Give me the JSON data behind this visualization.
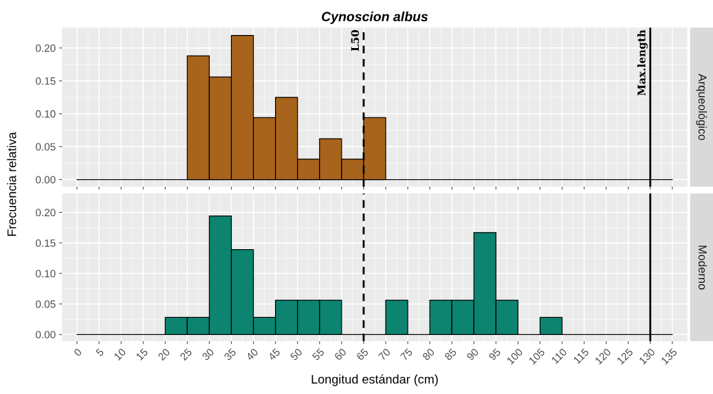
{
  "chart_data": [
    {
      "type": "histogram",
      "title": "Cynoscion albus",
      "ylabel": "Frecuencia relativa",
      "y2label": "Arqueológico",
      "color": "#a8641c",
      "bins": [
        0,
        5,
        10,
        15,
        20,
        25,
        30,
        35,
        40,
        45,
        50,
        55,
        60,
        65,
        70,
        75,
        80,
        85,
        90,
        95,
        100,
        105,
        110,
        115,
        120,
        125,
        130,
        135
      ],
      "values": [
        0,
        0,
        0,
        0,
        0,
        0.188,
        0.156,
        0.219,
        0.094,
        0.125,
        0.031,
        0.062,
        0.031,
        0.094,
        0,
        0,
        0,
        0,
        0,
        0,
        0,
        0,
        0,
        0,
        0,
        0,
        0
      ],
      "xlim": [
        -3.4,
        138.4
      ],
      "ylim": [
        -0.011,
        0.231
      ],
      "yticks": [
        {
          "value": 0,
          "label": "0.00"
        },
        {
          "value": 0.05,
          "label": "0.05"
        },
        {
          "value": 0.1,
          "label": "0.10"
        },
        {
          "value": 0.15,
          "label": "0.15"
        },
        {
          "value": 0.2,
          "label": "0.20"
        }
      ],
      "grid": true,
      "tick_labels": "y",
      "ref_lines": [
        {
          "axis": "x",
          "value": 65,
          "label": "L50",
          "line_style": "dashed"
        },
        {
          "axis": "x",
          "value": 130,
          "label": "Max.length",
          "line_style": "solid"
        }
      ]
    },
    {
      "type": "histogram",
      "xlabel": "Longitud estándar (cm)",
      "y2label": "Moderno",
      "color": "#0c8470",
      "bins": [
        0,
        5,
        10,
        15,
        20,
        25,
        30,
        35,
        40,
        45,
        50,
        55,
        60,
        65,
        70,
        75,
        80,
        85,
        90,
        95,
        100,
        105,
        110,
        115,
        120,
        125,
        130,
        135
      ],
      "values": [
        0,
        0,
        0,
        0,
        0.028,
        0.028,
        0.194,
        0.139,
        0.028,
        0.056,
        0.056,
        0.056,
        0,
        0,
        0.056,
        0,
        0.056,
        0.056,
        0.167,
        0.056,
        0,
        0.028,
        0,
        0,
        0,
        0,
        0
      ],
      "xlim": [
        -3.4,
        138.4
      ],
      "ylim": [
        -0.011,
        0.231
      ],
      "xticks": [
        0,
        5,
        10,
        15,
        20,
        25,
        30,
        35,
        40,
        45,
        50,
        55,
        60,
        65,
        70,
        75,
        80,
        85,
        90,
        95,
        100,
        105,
        110,
        115,
        120,
        125,
        130,
        135
      ],
      "yticks": [
        {
          "value": 0,
          "label": "0.00"
        },
        {
          "value": 0.05,
          "label": "0.05"
        },
        {
          "value": 0.1,
          "label": "0.10"
        },
        {
          "value": 0.15,
          "label": "0.15"
        },
        {
          "value": 0.2,
          "label": "0.20"
        }
      ],
      "grid": true,
      "ref_lines": [
        {
          "axis": "x",
          "value": 65,
          "line_style": "dashed"
        },
        {
          "axis": "x",
          "value": 130,
          "line_style": "solid"
        }
      ]
    }
  ]
}
